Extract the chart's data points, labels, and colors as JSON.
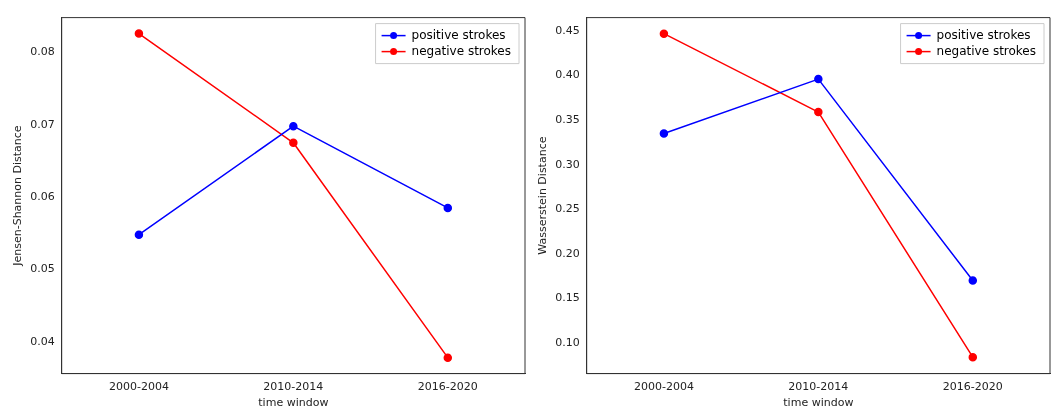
{
  "chart_data": [
    {
      "type": "line",
      "categories": [
        "2000-2004",
        "2010-2014",
        "2016-2020"
      ],
      "xlabel": "time window",
      "ylabel": "Jensen-Shannon Distance",
      "ylim": [
        0.0356,
        0.0848
      ],
      "yticks": [
        {
          "value": 0.04,
          "label": "0.04"
        },
        {
          "value": 0.05,
          "label": "0.05"
        },
        {
          "value": 0.06,
          "label": "0.06"
        },
        {
          "value": 0.07,
          "label": "0.07"
        },
        {
          "value": 0.08,
          "label": "0.08"
        }
      ],
      "grid": false,
      "legend": "top right",
      "marker": "circle",
      "series": [
        {
          "name": "positive strokes",
          "color": "#0000ff",
          "values": [
            0.0548,
            0.0698,
            0.0585
          ]
        },
        {
          "name": "negative strokes",
          "color": "#ff0000",
          "values": [
            0.0826,
            0.0675,
            0.0378
          ]
        }
      ]
    },
    {
      "type": "line",
      "categories": [
        "2000-2004",
        "2010-2014",
        "2016-2020"
      ],
      "xlabel": "time window",
      "ylabel": "Wasserstein Distance",
      "ylim": [
        0.0656,
        0.465
      ],
      "yticks": [
        {
          "value": 0.1,
          "label": "0.10"
        },
        {
          "value": 0.15,
          "label": "0.15"
        },
        {
          "value": 0.2,
          "label": "0.20"
        },
        {
          "value": 0.25,
          "label": "0.25"
        },
        {
          "value": 0.3,
          "label": "0.30"
        },
        {
          "value": 0.35,
          "label": "0.35"
        },
        {
          "value": 0.4,
          "label": "0.40"
        },
        {
          "value": 0.45,
          "label": "0.45"
        }
      ],
      "grid": false,
      "legend": "top right",
      "marker": "circle",
      "series": [
        {
          "name": "positive strokes",
          "color": "#0000ff",
          "values": [
            0.335,
            0.396,
            0.17
          ]
        },
        {
          "name": "negative strokes",
          "color": "#ff0000",
          "values": [
            0.447,
            0.359,
            0.084
          ]
        }
      ]
    }
  ]
}
